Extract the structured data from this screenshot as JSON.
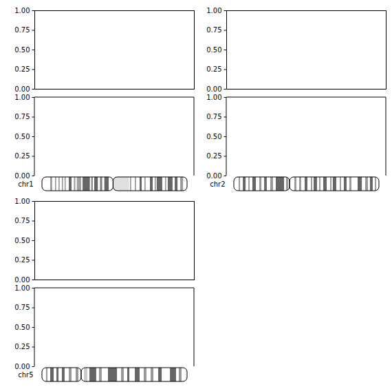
{
  "chart_data": [
    {
      "type": "empty",
      "ylim": [
        0,
        1
      ],
      "yticks": [
        {
          "value": 0,
          "label": "0.00"
        },
        {
          "value": 0.25,
          "label": "0.25"
        },
        {
          "value": 0.5,
          "label": "0.50"
        },
        {
          "value": 0.75,
          "label": "0.75"
        },
        {
          "value": 1,
          "label": "1.00"
        }
      ],
      "tick_labels": "y"
    },
    {
      "type": "empty",
      "ylim": [
        0,
        1
      ],
      "yticks": [
        {
          "value": 0,
          "label": "0.00"
        },
        {
          "value": 0.25,
          "label": "0.25"
        },
        {
          "value": 0.5,
          "label": "0.50"
        },
        {
          "value": 0.75,
          "label": "0.75"
        },
        {
          "value": 1,
          "label": "1.00"
        }
      ],
      "tick_labels": "y"
    },
    {
      "type": "ideogram",
      "title": "chr1",
      "xlim": [
        0,
        100
      ],
      "centromere": 49,
      "tick_labels": false,
      "bands": [
        {
          "start": 5.7,
          "end": 7,
          "color": "#999999"
        },
        {
          "start": 9,
          "end": 9.8,
          "color": "#999999"
        },
        {
          "start": 11.4,
          "end": 12.2,
          "color": "#999999"
        },
        {
          "start": 13.7,
          "end": 14.5,
          "color": "#999999"
        },
        {
          "start": 15.6,
          "end": 16.4,
          "color": "#999999"
        },
        {
          "start": 18.5,
          "end": 20.4,
          "color": "#666666"
        },
        {
          "start": 22,
          "end": 23,
          "color": "#999999"
        },
        {
          "start": 24,
          "end": 27,
          "color": "#a0a0a0"
        },
        {
          "start": 28,
          "end": 33,
          "color": "#666666"
        },
        {
          "start": 34,
          "end": 35,
          "color": "#808080"
        },
        {
          "start": 36,
          "end": 38.5,
          "color": "#666666"
        },
        {
          "start": 40,
          "end": 41.5,
          "color": "#808080"
        },
        {
          "start": 43,
          "end": 46,
          "color": "#666666"
        },
        {
          "start": 49,
          "end": 60,
          "color": "#e0e0e0"
        },
        {
          "start": 60.7,
          "end": 61.5,
          "color": "#999999"
        },
        {
          "start": 64,
          "end": 64.8,
          "color": "#999999"
        },
        {
          "start": 67.3,
          "end": 68.7,
          "color": "#666666"
        },
        {
          "start": 70.6,
          "end": 71.4,
          "color": "#999999"
        },
        {
          "start": 74.4,
          "end": 76.3,
          "color": "#666666"
        },
        {
          "start": 77.7,
          "end": 78.5,
          "color": "#999999"
        },
        {
          "start": 79.1,
          "end": 82.9,
          "color": "#666666"
        },
        {
          "start": 84.8,
          "end": 85.6,
          "color": "#999999"
        },
        {
          "start": 86.7,
          "end": 90,
          "color": "#666666"
        },
        {
          "start": 91.5,
          "end": 93.4,
          "color": "#666666"
        },
        {
          "start": 95.3,
          "end": 97.2,
          "color": "#999999"
        }
      ]
    },
    {
      "type": "empty",
      "ylim": [
        0,
        1
      ],
      "yticks": [
        {
          "value": 0,
          "label": "0.00"
        },
        {
          "value": 0.25,
          "label": "0.25"
        },
        {
          "value": 0.5,
          "label": "0.50"
        },
        {
          "value": 0.75,
          "label": "0.75"
        },
        {
          "value": 1,
          "label": "1.00"
        }
      ],
      "tick_labels": "y"
    },
    {
      "type": "empty",
      "ylim": [
        0,
        1
      ],
      "yticks": [
        {
          "value": 0,
          "label": "0.00"
        },
        {
          "value": 0.25,
          "label": "0.25"
        },
        {
          "value": 0.5,
          "label": "0.50"
        },
        {
          "value": 0.75,
          "label": "0.75"
        },
        {
          "value": 1,
          "label": "1.00"
        }
      ],
      "tick_labels": "y"
    },
    {
      "type": "ideogram",
      "title": "chr2",
      "xlim": [
        0,
        100
      ],
      "centromere": 38.4,
      "tick_labels": false,
      "bands": [
        {
          "start": 3.3,
          "end": 4.3,
          "color": "#999999"
        },
        {
          "start": 6.2,
          "end": 8.1,
          "color": "#666666"
        },
        {
          "start": 10,
          "end": 10.9,
          "color": "#999999"
        },
        {
          "start": 12.8,
          "end": 15.2,
          "color": "#666666"
        },
        {
          "start": 17.5,
          "end": 19,
          "color": "#999999"
        },
        {
          "start": 20.9,
          "end": 22.7,
          "color": "#666666"
        },
        {
          "start": 25.1,
          "end": 27,
          "color": "#999999"
        },
        {
          "start": 28.9,
          "end": 34.6,
          "color": "#666666"
        },
        {
          "start": 36,
          "end": 37.4,
          "color": "#999999"
        },
        {
          "start": 41.7,
          "end": 43.1,
          "color": "#999999"
        },
        {
          "start": 45,
          "end": 46.4,
          "color": "#999999"
        },
        {
          "start": 48.8,
          "end": 50.7,
          "color": "#666666"
        },
        {
          "start": 53.1,
          "end": 54,
          "color": "#999999"
        },
        {
          "start": 55,
          "end": 57.3,
          "color": "#666666"
        },
        {
          "start": 58.8,
          "end": 59.7,
          "color": "#999999"
        },
        {
          "start": 61.6,
          "end": 64,
          "color": "#666666"
        },
        {
          "start": 66.4,
          "end": 67.3,
          "color": "#999999"
        },
        {
          "start": 68.2,
          "end": 70.6,
          "color": "#666666"
        },
        {
          "start": 73,
          "end": 73.9,
          "color": "#999999"
        },
        {
          "start": 75.8,
          "end": 77.7,
          "color": "#666666"
        },
        {
          "start": 79.6,
          "end": 81,
          "color": "#999999"
        },
        {
          "start": 85.3,
          "end": 88.2,
          "color": "#666666"
        },
        {
          "start": 90.5,
          "end": 92.4,
          "color": "#999999"
        },
        {
          "start": 93.8,
          "end": 95.7,
          "color": "#666666"
        },
        {
          "start": 97.2,
          "end": 98.1,
          "color": "#999999"
        }
      ]
    },
    {
      "type": "empty",
      "ylim": [
        0,
        1
      ],
      "yticks": [
        {
          "value": 0,
          "label": "0.00"
        },
        {
          "value": 0.25,
          "label": "0.25"
        },
        {
          "value": 0.5,
          "label": "0.50"
        },
        {
          "value": 0.75,
          "label": "0.75"
        },
        {
          "value": 1,
          "label": "1.00"
        }
      ],
      "tick_labels": "y"
    },
    {
      "type": "empty",
      "ylim": [
        0,
        1
      ],
      "yticks": [
        {
          "value": 0,
          "label": "0.00"
        },
        {
          "value": 0.25,
          "label": "0.25"
        },
        {
          "value": 0.5,
          "label": "0.50"
        },
        {
          "value": 0.75,
          "label": "0.75"
        },
        {
          "value": 1,
          "label": "1.00"
        }
      ],
      "tick_labels": "y"
    },
    {
      "type": "ideogram",
      "title": "chr5",
      "xlim": [
        0,
        100
      ],
      "centromere": 27,
      "tick_labels": false,
      "bands": [
        {
          "start": 2.8,
          "end": 3.8,
          "color": "#999999"
        },
        {
          "start": 5.7,
          "end": 8.1,
          "color": "#666666"
        },
        {
          "start": 10,
          "end": 11.4,
          "color": "#666666"
        },
        {
          "start": 13.7,
          "end": 15.6,
          "color": "#666666"
        },
        {
          "start": 18.5,
          "end": 20.4,
          "color": "#999999"
        },
        {
          "start": 23.2,
          "end": 25.1,
          "color": "#999999"
        },
        {
          "start": 28.9,
          "end": 31.3,
          "color": "#cccccc"
        },
        {
          "start": 32.7,
          "end": 37.4,
          "color": "#666666"
        },
        {
          "start": 39.3,
          "end": 41.2,
          "color": "#999999"
        },
        {
          "start": 45.5,
          "end": 51.7,
          "color": "#666666"
        },
        {
          "start": 54.5,
          "end": 56.4,
          "color": "#999999"
        },
        {
          "start": 58.8,
          "end": 60.2,
          "color": "#666666"
        },
        {
          "start": 64,
          "end": 67.3,
          "color": "#666666"
        },
        {
          "start": 70.1,
          "end": 72,
          "color": "#999999"
        },
        {
          "start": 74.9,
          "end": 76.8,
          "color": "#999999"
        },
        {
          "start": 80.1,
          "end": 82.5,
          "color": "#666666"
        },
        {
          "start": 88.2,
          "end": 92.4,
          "color": "#666666"
        },
        {
          "start": 94.3,
          "end": 96.2,
          "color": "#999999"
        }
      ]
    }
  ]
}
